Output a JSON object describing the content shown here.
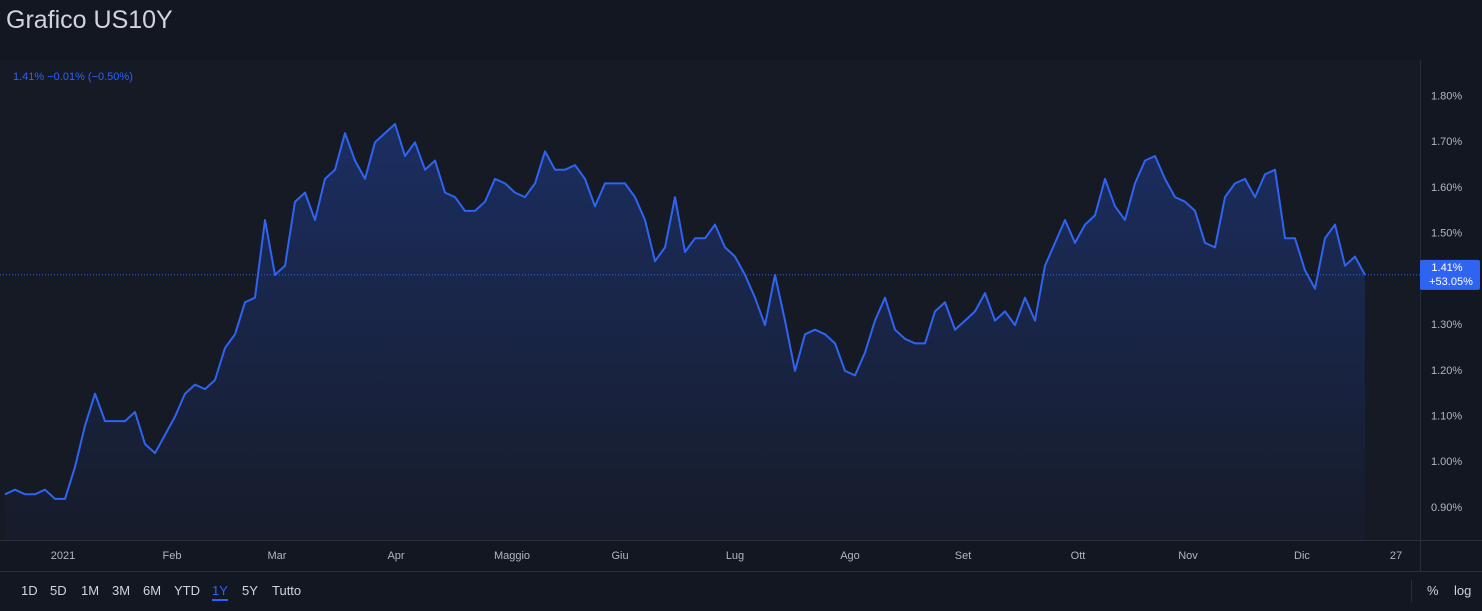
{
  "page_title": "Grafico US10Y",
  "chart_data": {
    "type": "line",
    "subtitle": "1.41%  −0.01% (−0.50%)",
    "color": "#2f63f2",
    "grid": false,
    "values": [
      0.93,
      0.94,
      0.93,
      0.93,
      0.94,
      0.92,
      0.92,
      0.99,
      1.08,
      1.15,
      1.09,
      1.09,
      1.09,
      1.11,
      1.04,
      1.02,
      1.06,
      1.1,
      1.15,
      1.17,
      1.16,
      1.18,
      1.25,
      1.28,
      1.35,
      1.36,
      1.53,
      1.41,
      1.43,
      1.57,
      1.59,
      1.53,
      1.62,
      1.64,
      1.72,
      1.66,
      1.62,
      1.7,
      1.72,
      1.74,
      1.67,
      1.7,
      1.64,
      1.66,
      1.59,
      1.58,
      1.55,
      1.55,
      1.57,
      1.62,
      1.61,
      1.59,
      1.58,
      1.61,
      1.68,
      1.64,
      1.64,
      1.65,
      1.62,
      1.56,
      1.61,
      1.61,
      1.61,
      1.58,
      1.53,
      1.44,
      1.47,
      1.58,
      1.46,
      1.49,
      1.49,
      1.52,
      1.47,
      1.45,
      1.41,
      1.36,
      1.3,
      1.41,
      1.31,
      1.2,
      1.28,
      1.29,
      1.28,
      1.26,
      1.2,
      1.19,
      1.24,
      1.31,
      1.36,
      1.29,
      1.27,
      1.26,
      1.26,
      1.33,
      1.35,
      1.29,
      1.31,
      1.33,
      1.37,
      1.31,
      1.33,
      1.3,
      1.36,
      1.31,
      1.43,
      1.48,
      1.53,
      1.48,
      1.52,
      1.54,
      1.62,
      1.56,
      1.53,
      1.61,
      1.66,
      1.67,
      1.62,
      1.58,
      1.57,
      1.55,
      1.48,
      1.47,
      1.58,
      1.61,
      1.62,
      1.58,
      1.63,
      1.64,
      1.49,
      1.49,
      1.42,
      1.38,
      1.49,
      1.52,
      1.43,
      1.45,
      1.41
    ],
    "xlim": [
      -0.5,
      141.5
    ],
    "xticks": [
      {
        "value": 5.8,
        "label": "2021"
      },
      {
        "value": 16.7,
        "label": "Feb"
      },
      {
        "value": 27.2,
        "label": "Mar"
      },
      {
        "value": 39.1,
        "label": "Apr"
      },
      {
        "value": 50.7,
        "label": "Maggio"
      },
      {
        "value": 61.5,
        "label": "Giu"
      },
      {
        "value": 73,
        "label": "Lug"
      },
      {
        "value": 84.5,
        "label": "Ago"
      },
      {
        "value": 95.8,
        "label": "Set"
      },
      {
        "value": 107.3,
        "label": "Ott"
      },
      {
        "value": 118.3,
        "label": "Nov"
      },
      {
        "value": 129.7,
        "label": "Dic"
      },
      {
        "value": 139.1,
        "label": "27"
      }
    ],
    "ylim": [
      0.83,
      1.88
    ],
    "yticks": [
      {
        "value": 0.9,
        "label": "0.90%"
      },
      {
        "value": 1.0,
        "label": "1.00%"
      },
      {
        "value": 1.1,
        "label": "1.10%"
      },
      {
        "value": 1.2,
        "label": "1.20%"
      },
      {
        "value": 1.3,
        "label": "1.30%"
      },
      {
        "value": 1.4,
        "label": "1.40%"
      },
      {
        "value": 1.5,
        "label": "1.50%"
      },
      {
        "value": 1.6,
        "label": "1.60%"
      },
      {
        "value": 1.7,
        "label": "1.70%"
      },
      {
        "value": 1.8,
        "label": "1.80%"
      }
    ],
    "last_label": {
      "price": "1.41%",
      "change": "+53.05%"
    }
  },
  "toolbar": {
    "ranges": [
      "1D",
      "5D",
      "1M",
      "3M",
      "6M",
      "YTD",
      "1Y",
      "5Y",
      "Tutto"
    ],
    "active": 6,
    "percent": "%",
    "log": "log"
  }
}
